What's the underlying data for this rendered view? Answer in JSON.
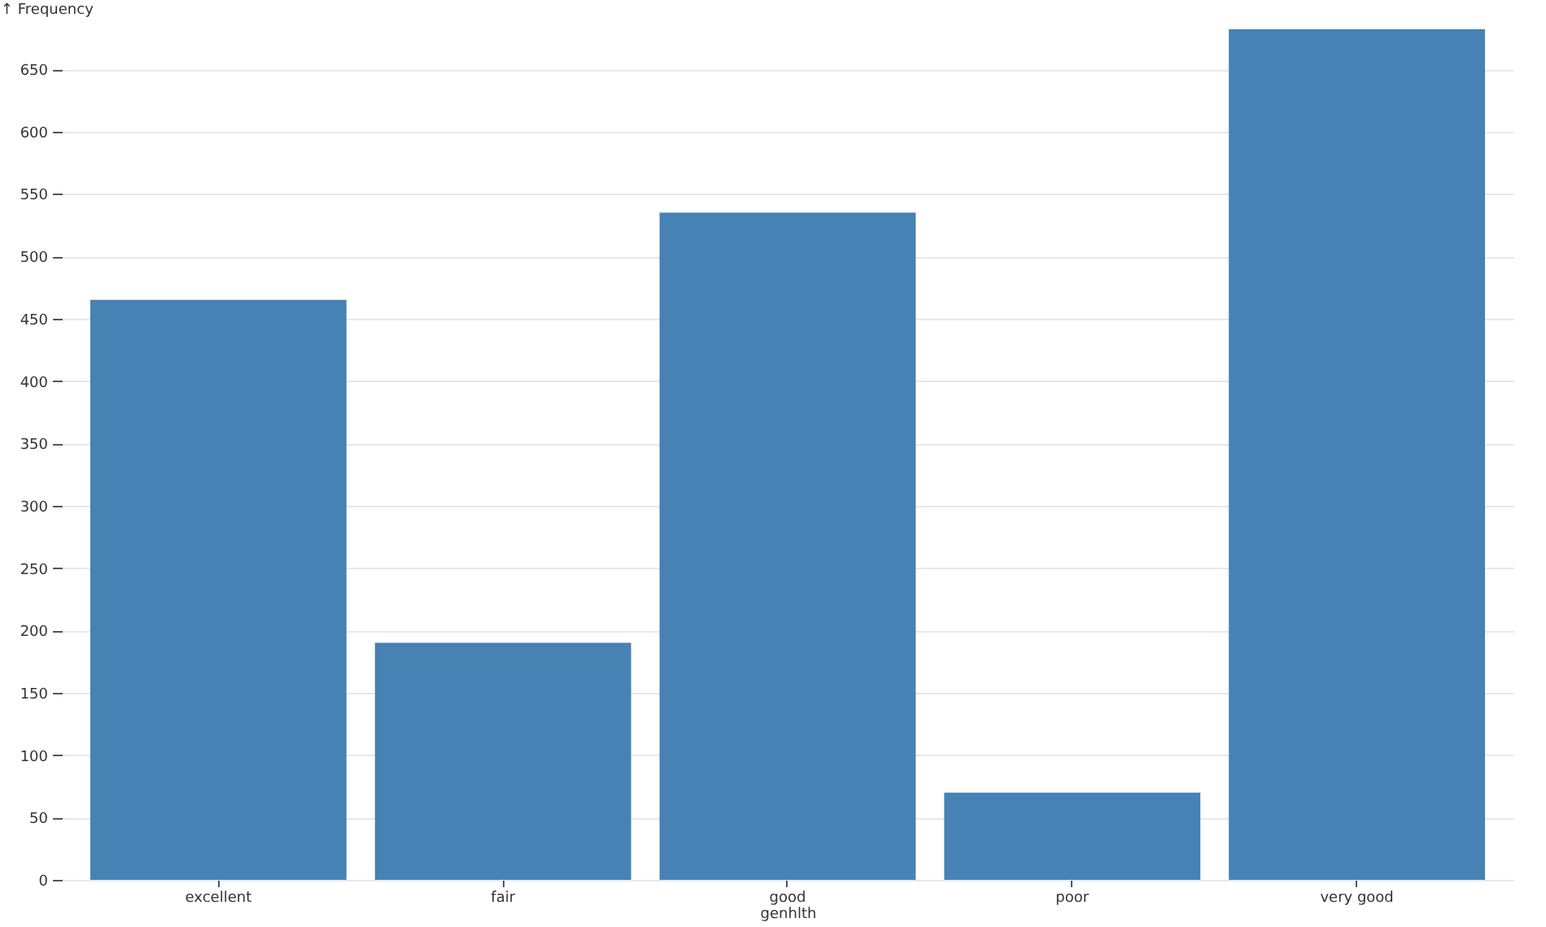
{
  "chart_data": {
    "type": "bar",
    "xlabel": "genhlth",
    "ylabel": "↑ Frequency",
    "categories": [
      "excellent",
      "fair",
      "good",
      "poor",
      "very good"
    ],
    "values": [
      465,
      190,
      535,
      70,
      682
    ],
    "color": "#4682b4",
    "ylim": [
      0,
      682
    ],
    "yticks": [
      0,
      50,
      100,
      150,
      200,
      250,
      300,
      350,
      400,
      450,
      500,
      550,
      600,
      650
    ],
    "grid": "y"
  }
}
